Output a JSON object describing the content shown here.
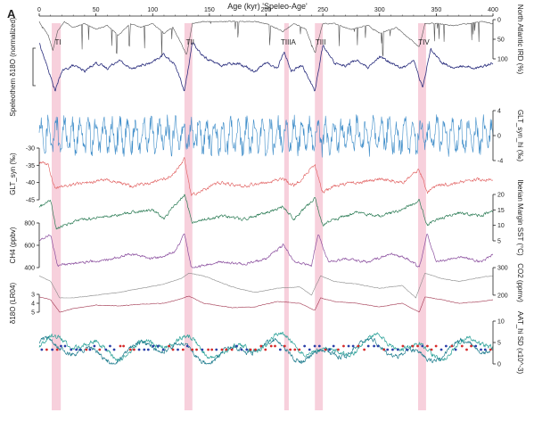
{
  "panel_letter": "A",
  "chart_data": {
    "type": "line",
    "title": "",
    "xlabel": "Age (kyr) 'Speleo-Age'",
    "xlim": [
      0,
      400
    ],
    "x_ticks": [
      0,
      50,
      100,
      150,
      200,
      250,
      300,
      350,
      400
    ],
    "terminations": [
      {
        "label": "TI",
        "start": 11,
        "end": 19
      },
      {
        "label": "TII",
        "start": 128,
        "end": 135
      },
      {
        "label": "TIIIA",
        "start": 216,
        "end": 220
      },
      {
        "label": "TIII",
        "start": 243,
        "end": 250
      },
      {
        "label": "TIV",
        "start": 334,
        "end": 341
      }
    ],
    "panels": [
      {
        "id": "ird",
        "label": "North Atlantic IRD (%)",
        "side": "right",
        "ticks": [
          0,
          50,
          100
        ],
        "reversed": true,
        "color": "#555555",
        "series": [
          {
            "x": [
              0,
              8,
              12,
              16,
              22,
              30,
              40,
              50,
              60,
              70,
              80,
              90,
              100,
              110,
              118,
              125,
              130,
              135,
              145,
              160,
              175,
              190,
              200,
              215,
              225,
              235,
              243,
              250,
              260,
              275,
              290,
              300,
              315,
              325,
              335,
              340,
              350,
              365,
              380,
              390,
              400
            ],
            "y": [
              5,
              40,
              80,
              30,
              5,
              20,
              10,
              25,
              15,
              40,
              10,
              20,
              10,
              35,
              20,
              60,
              90,
              10,
              5,
              5,
              5,
              5,
              10,
              30,
              10,
              25,
              85,
              10,
              10,
              25,
              15,
              35,
              20,
              45,
              70,
              10,
              10,
              15,
              10,
              5,
              10
            ]
          }
        ]
      },
      {
        "id": "speleo",
        "label": "Speleothem δ18O (normalized)",
        "side": "left",
        "ticks": [],
        "color": "#2b2f7e",
        "series": [
          {
            "x": [
              0,
              10,
              14,
              20,
              30,
              40,
              50,
              60,
              70,
              80,
              90,
              100,
              110,
              120,
              128,
              135,
              145,
              160,
              175,
              190,
              200,
              210,
              216,
              222,
              232,
              243,
              250,
              260,
              270,
              280,
              290,
              300,
              310,
              320,
              330,
              338,
              345,
              355,
              365,
              375,
              385,
              400
            ],
            "y": [
              0.95,
              0.35,
              0.1,
              0.45,
              0.55,
              0.45,
              0.6,
              0.5,
              0.65,
              0.5,
              0.55,
              0.6,
              0.75,
              0.55,
              0.1,
              0.95,
              0.7,
              0.55,
              0.6,
              0.45,
              0.6,
              0.5,
              0.8,
              0.45,
              0.55,
              0.1,
              0.9,
              0.6,
              0.55,
              0.65,
              0.5,
              0.7,
              0.6,
              0.5,
              0.65,
              0.15,
              0.85,
              0.6,
              0.5,
              0.55,
              0.5,
              0.6
            ]
          }
        ]
      },
      {
        "id": "glt_hi",
        "label": "GLT_syn_hi (‰)",
        "side": "right",
        "ticks": [
          -4,
          0,
          4
        ],
        "color": "#3b8bc8",
        "series": [
          {
            "x": [
              0,
              400
            ],
            "y": [
              0,
              0
            ]
          }
        ]
      },
      {
        "id": "glt",
        "label": "GLT_syn (‰)",
        "side": "left",
        "ticks": [
          -30,
          -35,
          -40,
          -45
        ],
        "color": "#e05a5a",
        "series": [
          {
            "x": [
              0,
              8,
              14,
              20,
              40,
              60,
              80,
              100,
              110,
              120,
              128,
              134,
              145,
              160,
              180,
              200,
              215,
              225,
              243,
              250,
              260,
              280,
              300,
              320,
              335,
              342,
              350,
              370,
              390,
              400
            ],
            "y": [
              -34,
              -35,
              -42,
              -41,
              -40,
              -39,
              -41,
              -40,
              -39,
              -37,
              -33,
              -44,
              -42,
              -40,
              -41,
              -40,
              -39,
              -41,
              -35,
              -43,
              -41,
              -40,
              -39,
              -40,
              -36,
              -43,
              -41,
              -40,
              -39,
              -39
            ]
          }
        ]
      },
      {
        "id": "sst",
        "label": "Iberian Margin SST (°C)",
        "side": "right",
        "ticks": [
          20,
          15,
          10,
          5
        ],
        "color": "#2e7d57",
        "series": [
          {
            "x": [
              0,
              10,
              15,
              20,
              40,
              60,
              80,
              100,
              110,
              120,
              128,
              135,
              145,
              160,
              180,
              200,
              215,
              225,
              243,
              250,
              260,
              280,
              300,
              320,
              335,
              342,
              350,
              370,
              390,
              400
            ],
            "y": [
              16,
              18,
              9,
              10,
              12,
              13,
              14,
              15,
              12,
              17,
              20,
              11,
              12,
              13,
              12,
              14,
              16,
              12,
              19,
              10,
              12,
              14,
              13,
              15,
              18,
              10,
              12,
              14,
              13,
              15
            ]
          }
        ]
      },
      {
        "id": "ch4",
        "label": "CH4 (ppbv)",
        "side": "left",
        "ticks": [
          800,
          600,
          400
        ],
        "color": "#8a4e9e",
        "series": [
          {
            "x": [
              0,
              10,
              16,
              25,
              40,
              60,
              80,
              100,
              110,
              120,
              128,
              134,
              145,
              160,
              180,
              200,
              215,
              225,
              240,
              246,
              255,
              270,
              290,
              310,
              325,
              335,
              342,
              350,
              370,
              390,
              400
            ],
            "y": [
              650,
              700,
              420,
              430,
              450,
              470,
              520,
              480,
              500,
              550,
              700,
              400,
              420,
              450,
              430,
              480,
              600,
              450,
              420,
              700,
              450,
              480,
              450,
              520,
              480,
              400,
              700,
              450,
              500,
              450,
              520
            ]
          }
        ]
      },
      {
        "id": "co2",
        "label": "CO2 (ppmv)",
        "side": "right",
        "ticks": [
          300,
          200
        ],
        "color": "#888888",
        "series": [
          {
            "x": [
              0,
              10,
              18,
              30,
              50,
              70,
              90,
              110,
              125,
              132,
              145,
              170,
              190,
              210,
              230,
              240,
              248,
              260,
              280,
              300,
              320,
              332,
              340,
              355,
              370,
              390,
              400
            ],
            "y": [
              270,
              250,
              190,
              190,
              200,
              210,
              225,
              240,
              260,
              280,
              270,
              230,
              210,
              225,
              230,
              200,
              270,
              250,
              240,
              225,
              235,
              190,
              280,
              260,
              250,
              265,
              270
            ]
          }
        ]
      },
      {
        "id": "lr04",
        "label": "δ18O (LR04)",
        "side": "left",
        "ticks": [
          3,
          4,
          5
        ],
        "reversed": true,
        "color": "#a0344e",
        "series": [
          {
            "x": [
              0,
              10,
              18,
              30,
              50,
              70,
              90,
              110,
              125,
              132,
              145,
              170,
              190,
              210,
              230,
              243,
              248,
              260,
              280,
              300,
              320,
              335,
              340,
              355,
              370,
              390,
              400
            ],
            "y": [
              3.3,
              3.6,
              5.0,
              4.6,
              4.2,
              4.3,
              4.1,
              4.0,
              3.5,
              3.2,
              4.0,
              4.5,
              4.4,
              3.8,
              4.0,
              4.8,
              3.4,
              3.8,
              4.0,
              4.4,
              4.0,
              5.0,
              3.3,
              3.6,
              4.0,
              3.8,
              3.6
            ]
          }
        ]
      },
      {
        "id": "aat_hi",
        "label": "AAT_hi SD (x10^-3)",
        "side": "right",
        "ticks": [
          10,
          5,
          0
        ],
        "color": "#2aa198",
        "series": [
          {
            "name": "",
            "x": [
              0,
              400
            ],
            "y": [
              4,
              4
            ]
          },
          {
            "name": "",
            "x": [
              0,
              400
            ],
            "y": [
              3,
              3
            ]
          }
        ]
      }
    ]
  }
}
